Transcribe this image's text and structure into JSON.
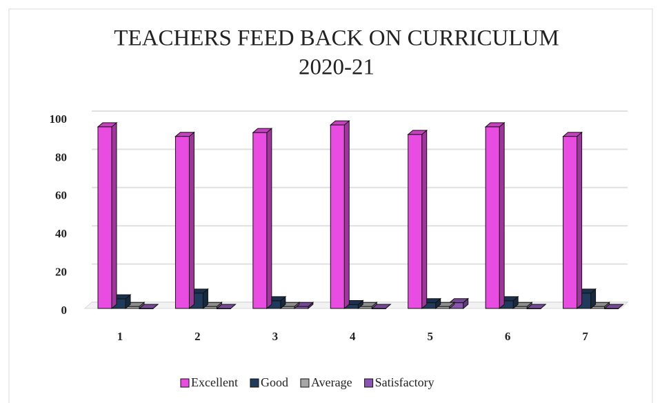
{
  "chart_data": {
    "type": "bar3d",
    "title": [
      "TEACHERS FEED BACK ON CURRICULUM",
      "2020-21"
    ],
    "categories": [
      "1",
      "2",
      "3",
      "4",
      "5",
      "6",
      "7"
    ],
    "series": [
      {
        "name": "Excellent",
        "color": "#e84ce0",
        "values": [
          95,
          90,
          92,
          96,
          91,
          95,
          90
        ]
      },
      {
        "name": "Good",
        "color": "#1f3a5a",
        "values": [
          5,
          8,
          4,
          2,
          3,
          4,
          8
        ]
      },
      {
        "name": "Average",
        "color": "#a6a6a6",
        "values": [
          1,
          1,
          1,
          1,
          1,
          1,
          1
        ]
      },
      {
        "name": "Satisfactory",
        "color": "#8a55b0",
        "values": [
          0,
          0,
          1,
          0,
          3,
          0,
          0
        ]
      }
    ],
    "ylim": [
      0,
      100
    ],
    "yticks": [
      0,
      20,
      40,
      60,
      80,
      100
    ],
    "grid": true,
    "legend": "bottom"
  }
}
